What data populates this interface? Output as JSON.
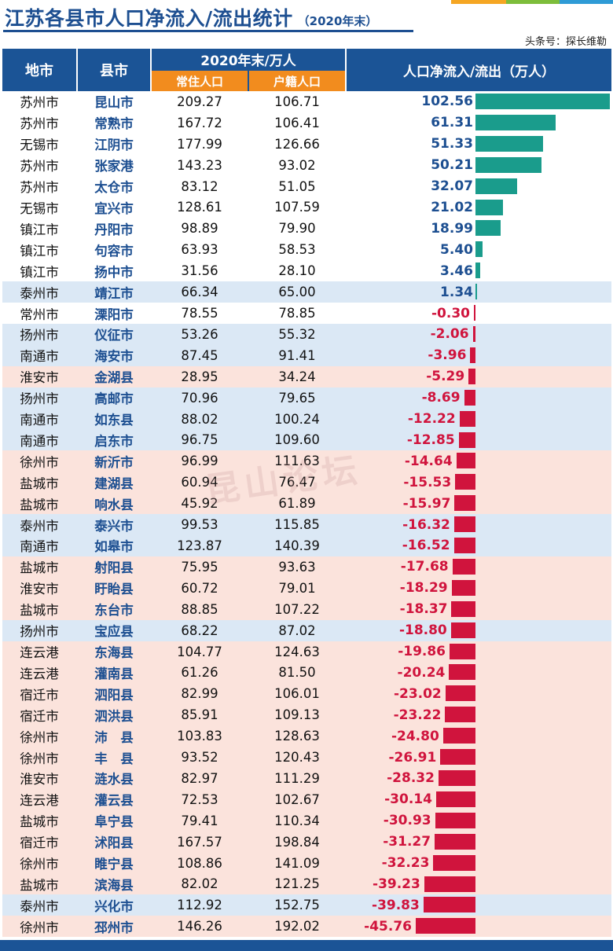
{
  "header": {
    "title": "江苏各县市人口净流入/流出统计",
    "subtitle": "（2020年末）",
    "source": "头条号：探长维勒"
  },
  "accent_colors": [
    "#f5a623",
    "#7dbd3b",
    "#2e9bd6"
  ],
  "table_header": {
    "col_city": "地市",
    "col_county": "县市",
    "group_label": "2020年末/万人",
    "col_resident": "常住人口",
    "col_registered": "户籍人口",
    "col_net": "人口净流入/流出（万人）"
  },
  "colors": {
    "header_bg": "#1b5496",
    "subheader_bg": "#f28c1e",
    "inflow_bar": "#1a9c8c",
    "outflow_bar": "#d0143d",
    "inflow_text": "#1d4f91",
    "outflow_text": "#d0143d",
    "row_blue": "#dbe8f5",
    "row_pink": "#fbe3dc"
  },
  "watermark": "昆山论坛",
  "chart_data": {
    "type": "table",
    "columns": [
      "地市",
      "县市",
      "常住人口",
      "户籍人口",
      "人口净流入/流出（万人）"
    ],
    "rows": [
      {
        "city": "苏州市",
        "county": "昆山市",
        "resident": "209.27",
        "registered": "106.71",
        "net": "102.56",
        "value": 102.56,
        "shade": "white"
      },
      {
        "city": "苏州市",
        "county": "常熟市",
        "resident": "167.72",
        "registered": "106.41",
        "net": "61.31",
        "value": 61.31,
        "shade": "white"
      },
      {
        "city": "无锡市",
        "county": "江阴市",
        "resident": "177.99",
        "registered": "126.66",
        "net": "51.33",
        "value": 51.33,
        "shade": "white"
      },
      {
        "city": "苏州市",
        "county": "张家港",
        "resident": "143.23",
        "registered": "93.02",
        "net": "50.21",
        "value": 50.21,
        "shade": "white"
      },
      {
        "city": "苏州市",
        "county": "太仓市",
        "resident": "83.12",
        "registered": "51.05",
        "net": "32.07",
        "value": 32.07,
        "shade": "white"
      },
      {
        "city": "无锡市",
        "county": "宜兴市",
        "resident": "128.61",
        "registered": "107.59",
        "net": "21.02",
        "value": 21.02,
        "shade": "white"
      },
      {
        "city": "镇江市",
        "county": "丹阳市",
        "resident": "98.89",
        "registered": "79.90",
        "net": "18.99",
        "value": 18.99,
        "shade": "white"
      },
      {
        "city": "镇江市",
        "county": "句容市",
        "resident": "63.93",
        "registered": "58.53",
        "net": "5.40",
        "value": 5.4,
        "shade": "white"
      },
      {
        "city": "镇江市",
        "county": "扬中市",
        "resident": "31.56",
        "registered": "28.10",
        "net": "3.46",
        "value": 3.46,
        "shade": "white"
      },
      {
        "city": "泰州市",
        "county": "靖江市",
        "resident": "66.34",
        "registered": "65.00",
        "net": "1.34",
        "value": 1.34,
        "shade": "blue"
      },
      {
        "city": "常州市",
        "county": "溧阳市",
        "resident": "78.55",
        "registered": "78.85",
        "net": "-0.30",
        "value": -0.3,
        "shade": "white"
      },
      {
        "city": "扬州市",
        "county": "仪征市",
        "resident": "53.26",
        "registered": "55.32",
        "net": "-2.06",
        "value": -2.06,
        "shade": "blue"
      },
      {
        "city": "南通市",
        "county": "海安市",
        "resident": "87.45",
        "registered": "91.41",
        "net": "-3.96",
        "value": -3.96,
        "shade": "blue"
      },
      {
        "city": "淮安市",
        "county": "金湖县",
        "resident": "28.95",
        "registered": "34.24",
        "net": "-5.29",
        "value": -5.29,
        "shade": "pink"
      },
      {
        "city": "扬州市",
        "county": "高邮市",
        "resident": "70.96",
        "registered": "79.65",
        "net": "-8.69",
        "value": -8.69,
        "shade": "blue"
      },
      {
        "city": "南通市",
        "county": "如东县",
        "resident": "88.02",
        "registered": "100.24",
        "net": "-12.22",
        "value": -12.22,
        "shade": "blue"
      },
      {
        "city": "南通市",
        "county": "启东市",
        "resident": "96.75",
        "registered": "109.60",
        "net": "-12.85",
        "value": -12.85,
        "shade": "blue"
      },
      {
        "city": "徐州市",
        "county": "新沂市",
        "resident": "96.99",
        "registered": "111.63",
        "net": "-14.64",
        "value": -14.64,
        "shade": "pink"
      },
      {
        "city": "盐城市",
        "county": "建湖县",
        "resident": "60.94",
        "registered": "76.47",
        "net": "-15.53",
        "value": -15.53,
        "shade": "pink"
      },
      {
        "city": "盐城市",
        "county": "响水县",
        "resident": "45.92",
        "registered": "61.89",
        "net": "-15.97",
        "value": -15.97,
        "shade": "pink"
      },
      {
        "city": "泰州市",
        "county": "泰兴市",
        "resident": "99.53",
        "registered": "115.85",
        "net": "-16.32",
        "value": -16.32,
        "shade": "blue"
      },
      {
        "city": "南通市",
        "county": "如皋市",
        "resident": "123.87",
        "registered": "140.39",
        "net": "-16.52",
        "value": -16.52,
        "shade": "blue"
      },
      {
        "city": "盐城市",
        "county": "射阳县",
        "resident": "75.95",
        "registered": "93.63",
        "net": "-17.68",
        "value": -17.68,
        "shade": "pink"
      },
      {
        "city": "淮安市",
        "county": "盱眙县",
        "resident": "60.72",
        "registered": "79.01",
        "net": "-18.29",
        "value": -18.29,
        "shade": "pink"
      },
      {
        "city": "盐城市",
        "county": "东台市",
        "resident": "88.85",
        "registered": "107.22",
        "net": "-18.37",
        "value": -18.37,
        "shade": "pink"
      },
      {
        "city": "扬州市",
        "county": "宝应县",
        "resident": "68.22",
        "registered": "87.02",
        "net": "-18.80",
        "value": -18.8,
        "shade": "blue"
      },
      {
        "city": "连云港",
        "county": "东海县",
        "resident": "104.77",
        "registered": "124.63",
        "net": "-19.86",
        "value": -19.86,
        "shade": "pink"
      },
      {
        "city": "连云港",
        "county": "灌南县",
        "resident": "61.26",
        "registered": "81.50",
        "net": "-20.24",
        "value": -20.24,
        "shade": "pink"
      },
      {
        "city": "宿迁市",
        "county": "泗阳县",
        "resident": "82.99",
        "registered": "106.01",
        "net": "-23.02",
        "value": -23.02,
        "shade": "pink"
      },
      {
        "city": "宿迁市",
        "county": "泗洪县",
        "resident": "85.91",
        "registered": "109.13",
        "net": "-23.22",
        "value": -23.22,
        "shade": "pink"
      },
      {
        "city": "徐州市",
        "county": "沛　县",
        "resident": "103.83",
        "registered": "128.63",
        "net": "-24.80",
        "value": -24.8,
        "shade": "pink"
      },
      {
        "city": "徐州市",
        "county": "丰　县",
        "resident": "93.52",
        "registered": "120.43",
        "net": "-26.91",
        "value": -26.91,
        "shade": "pink"
      },
      {
        "city": "淮安市",
        "county": "涟水县",
        "resident": "82.97",
        "registered": "111.29",
        "net": "-28.32",
        "value": -28.32,
        "shade": "pink"
      },
      {
        "city": "连云港",
        "county": "灌云县",
        "resident": "72.53",
        "registered": "102.67",
        "net": "-30.14",
        "value": -30.14,
        "shade": "pink"
      },
      {
        "city": "盐城市",
        "county": "阜宁县",
        "resident": "79.41",
        "registered": "110.34",
        "net": "-30.93",
        "value": -30.93,
        "shade": "pink"
      },
      {
        "city": "宿迁市",
        "county": "沭阳县",
        "resident": "167.57",
        "registered": "198.84",
        "net": "-31.27",
        "value": -31.27,
        "shade": "pink"
      },
      {
        "city": "徐州市",
        "county": "睢宁县",
        "resident": "108.86",
        "registered": "141.09",
        "net": "-32.23",
        "value": -32.23,
        "shade": "pink"
      },
      {
        "city": "盐城市",
        "county": "滨海县",
        "resident": "82.02",
        "registered": "121.25",
        "net": "-39.23",
        "value": -39.23,
        "shade": "pink"
      },
      {
        "city": "泰州市",
        "county": "兴化市",
        "resident": "112.92",
        "registered": "152.75",
        "net": "-39.83",
        "value": -39.83,
        "shade": "blue"
      },
      {
        "city": "徐州市",
        "county": "邳州市",
        "resident": "146.26",
        "registered": "192.02",
        "net": "-45.76",
        "value": -45.76,
        "shade": "pink"
      }
    ],
    "bar_domain": [
      -45.76,
      102.56
    ]
  }
}
